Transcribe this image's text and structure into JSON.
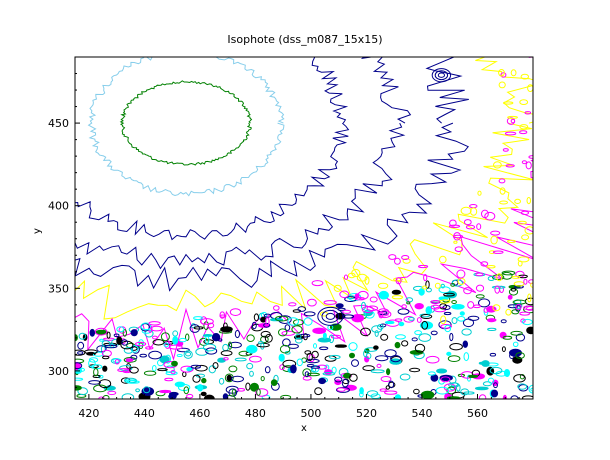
{
  "chart_data": {
    "type": "contour",
    "title": "Isophote (dss_m087_15x15)",
    "xlabel": "x",
    "ylabel": "y",
    "xlim": [
      415,
      580
    ],
    "ylim": [
      283,
      490
    ],
    "xticks": [
      420,
      440,
      460,
      480,
      500,
      520,
      540,
      560
    ],
    "yticks": [
      300,
      350,
      400,
      450
    ],
    "grid": false,
    "legend": "none",
    "center": {
      "x": 455,
      "y": 450
    },
    "levels": [
      {
        "color": "#008000",
        "rx": 23,
        "ry": 25,
        "noise": 0.03
      },
      {
        "color": "#87ceeb",
        "rx": 34,
        "ry": 43,
        "noise": 0.04
      },
      {
        "color": "#00008b",
        "rx": 56,
        "ry": 67,
        "noise": 0.06
      },
      {
        "color": "#00008b",
        "rx": 76,
        "ry": 83,
        "noise": 0.07
      },
      {
        "color": "#00008b",
        "rx": 97,
        "ry": 95,
        "noise": 0.08
      },
      {
        "color": "#ffff00",
        "rx": 120,
        "ry": 112,
        "noise": 0.1
      },
      {
        "color": "#ff00ff",
        "rx": 142,
        "ry": 128,
        "noise": 0.12
      }
    ],
    "noise_colors": [
      "#00008b",
      "#00ffff",
      "#008000",
      "#ff00ff",
      "#000000",
      "#00ced1"
    ],
    "blobs": [
      {
        "x": 547,
        "y": 479,
        "r": 2.2,
        "color": "#00008b"
      },
      {
        "x": 507,
        "y": 333,
        "r": 3,
        "color": "#00008b"
      }
    ]
  }
}
